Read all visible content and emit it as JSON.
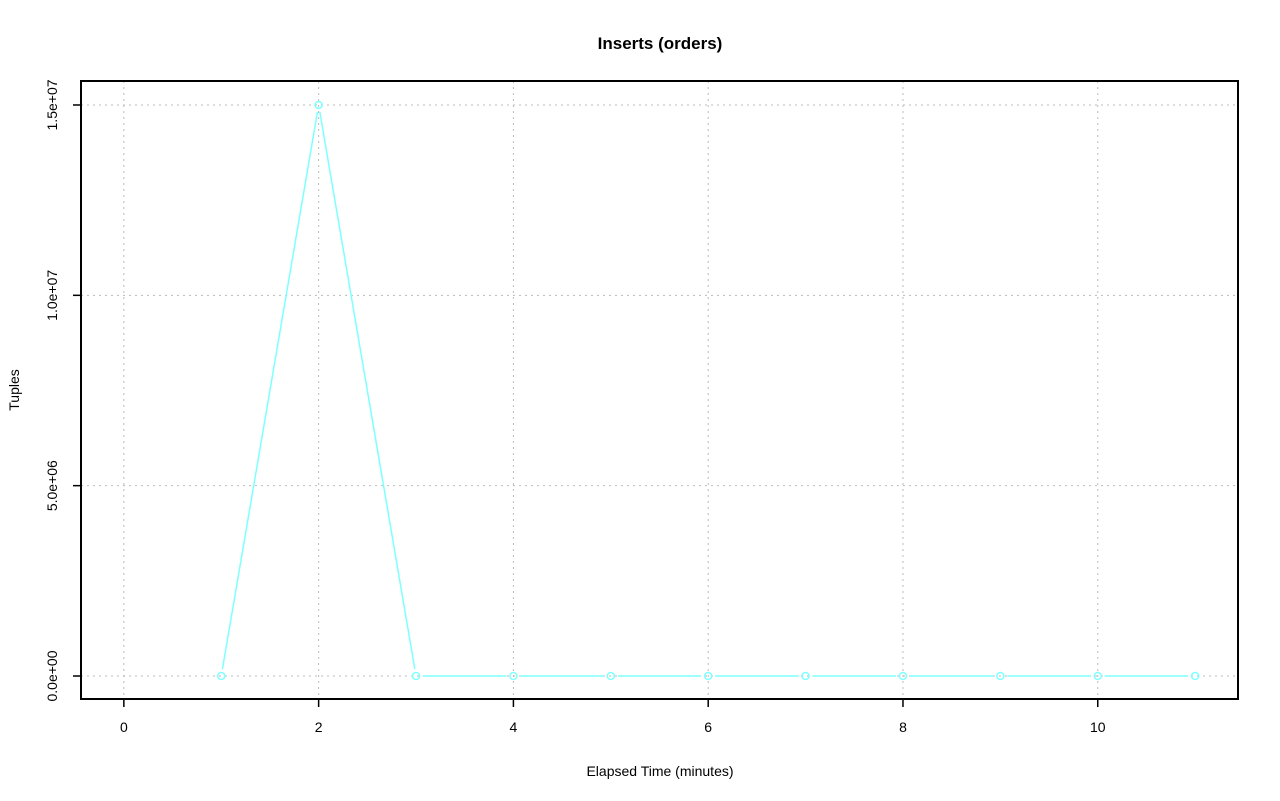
{
  "chart_data": {
    "type": "line",
    "title": "Inserts (orders)",
    "xlabel": "Elapsed Time (minutes)",
    "ylabel": "Tuples",
    "x": [
      1,
      2,
      3,
      4,
      5,
      6,
      7,
      8,
      9,
      10,
      11
    ],
    "series": [
      {
        "values": [
          0,
          15000000,
          0,
          0,
          0,
          0,
          0,
          0,
          0,
          0,
          0
        ],
        "color": "#7fffff"
      }
    ],
    "xlim": [
      -0.44,
      11.44
    ],
    "ylim": [
      -604000,
      15630000
    ],
    "xticks": [
      0,
      2,
      4,
      6,
      8,
      10
    ],
    "xtick_labels": [
      "0",
      "2",
      "4",
      "6",
      "8",
      "10"
    ],
    "yticks": [
      0,
      5000000,
      10000000,
      15000000
    ],
    "ytick_labels": [
      "0.0e+00",
      "5.0e+06",
      "1.0e+07",
      "1.5e+07"
    ],
    "grid": true,
    "markers": "open-circle"
  }
}
